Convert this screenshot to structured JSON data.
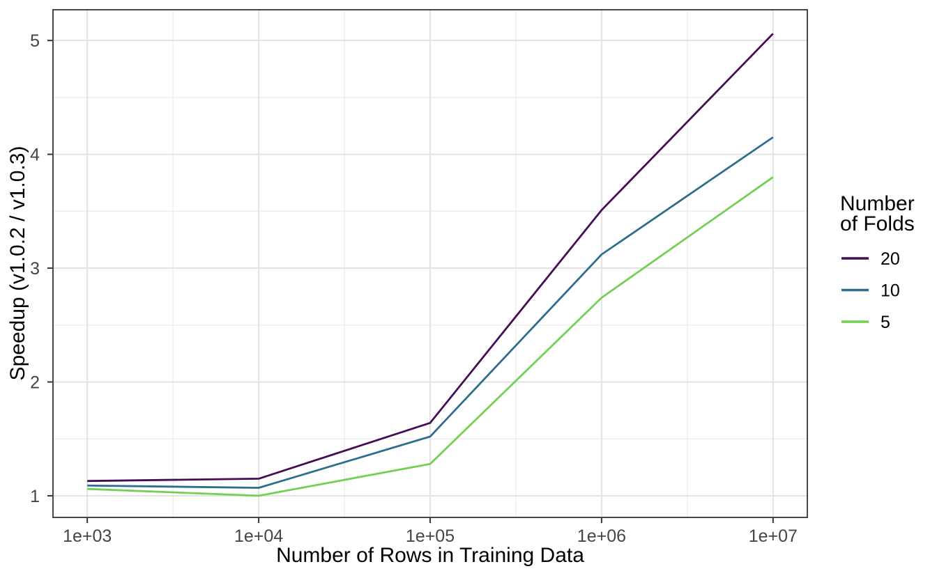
{
  "chart_data": {
    "type": "line",
    "title": "",
    "xlabel": "Number of Rows in Training Data",
    "ylabel": "Speedup (v1.0.2 / v1.0.3)",
    "x_scale": "log10",
    "x_values": [
      1000,
      10000,
      100000,
      1000000,
      10000000
    ],
    "x_tick_labels": [
      "1e+03",
      "1e+04",
      "1e+05",
      "1e+06",
      "1e+07"
    ],
    "y_ticks": [
      1,
      2,
      3,
      4,
      5
    ],
    "y_tick_labels": [
      "1",
      "2",
      "3",
      "4",
      "5"
    ],
    "xlim_log": [
      2.8,
      7.2
    ],
    "ylim": [
      0.81,
      5.27
    ],
    "grid": {
      "major": true,
      "minor": true
    },
    "legend": {
      "position": "right",
      "title": "Number of Folds",
      "title_lines": [
        "Number",
        "of Folds"
      ]
    },
    "series": [
      {
        "name": "20",
        "color": "#440D54",
        "values": [
          1.13,
          1.15,
          1.64,
          3.51,
          5.06
        ]
      },
      {
        "name": "10",
        "color": "#2E6D8E",
        "values": [
          1.09,
          1.07,
          1.52,
          3.12,
          4.15
        ]
      },
      {
        "name": "5",
        "color": "#73D055",
        "values": [
          1.06,
          1.0,
          1.28,
          2.74,
          3.8
        ]
      }
    ],
    "theme_colors": {
      "panel_border": "#333333",
      "grid_major": "#E3E3E3",
      "grid_minor": "#EDEDED",
      "tick_mark": "#333333"
    }
  }
}
